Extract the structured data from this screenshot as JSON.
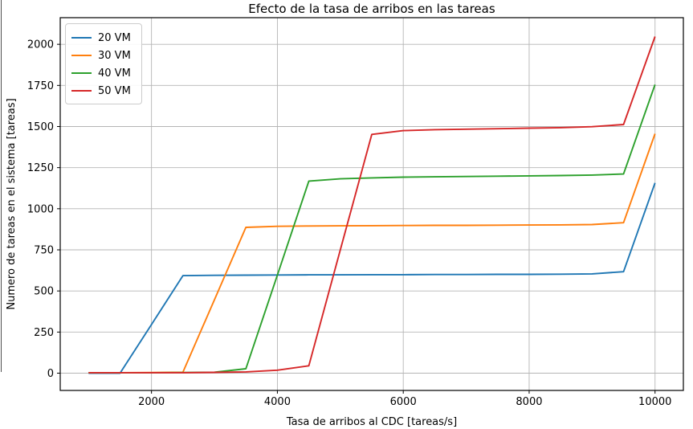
{
  "figure": {
    "background": "#ffffff",
    "window_edge_color": "#4f4f4f"
  },
  "chart_data": {
    "type": "line",
    "title": "Efecto de la tasa de arribos en las tareas",
    "xlabel": "Tasa de arribos al CDC [tareas/s]",
    "ylabel": "Numero de tareas en el sistema [tareas]",
    "x": [
      1000,
      1500,
      2000,
      2500,
      3000,
      3500,
      4000,
      4500,
      5000,
      5500,
      6000,
      6500,
      7000,
      7500,
      8000,
      8500,
      9000,
      9500,
      10000
    ],
    "series": [
      {
        "name": "20 VM",
        "color": "#1f77b4",
        "values": [
          0,
          0,
          296,
          593,
          595,
          596,
          597,
          598,
          598,
          599,
          599,
          600,
          600,
          601,
          601,
          602,
          604,
          617,
          1157
        ]
      },
      {
        "name": "30 VM",
        "color": "#ff7f0e",
        "values": [
          3,
          3,
          4,
          6,
          446,
          887,
          893,
          895,
          896,
          897,
          898,
          899,
          899,
          900,
          901,
          902,
          904,
          915,
          1456
        ]
      },
      {
        "name": "40 VM",
        "color": "#2ca02c",
        "values": [
          3,
          3,
          3,
          4,
          6,
          27,
          596,
          1168,
          1182,
          1188,
          1192,
          1194,
          1196,
          1198,
          1200,
          1202,
          1205,
          1211,
          1755
        ]
      },
      {
        "name": "50 VM",
        "color": "#d62728",
        "values": [
          3,
          3,
          3,
          3,
          5,
          8,
          18,
          45,
          750,
          1452,
          1475,
          1481,
          1484,
          1487,
          1490,
          1493,
          1499,
          1512,
          2047
        ]
      }
    ],
    "xlim": [
      550,
      10450
    ],
    "ylim": [
      -105,
      2162
    ],
    "xticks": [
      2000,
      4000,
      6000,
      8000,
      10000
    ],
    "yticks": [
      0,
      250,
      500,
      750,
      1000,
      1250,
      1500,
      1750,
      2000
    ],
    "grid": true,
    "grid_color": "#b5b5b5",
    "spine_color": "#000000",
    "tick_color": "#000000",
    "legend_position": "upper-left"
  }
}
